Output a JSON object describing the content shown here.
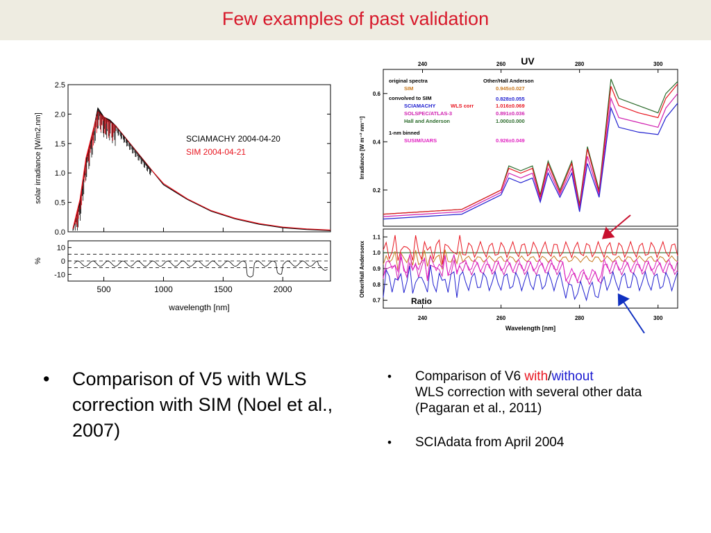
{
  "slide": {
    "title": "Few examples of past validation"
  },
  "left_bullet": {
    "text": "Comparison of V5 with WLS correction with SIM (Noel et al., 2007)"
  },
  "right_bullets": {
    "item1_prefix": "Comparison of V6 ",
    "item1_with": "with",
    "item1_slash": "/",
    "item1_without": "without",
    "item1_suffix": "WLS correction  with several other data  (Pagaran et al., 2011)",
    "item2": "SCIAdata from April 2004"
  },
  "colors": {
    "title": "#d7182a",
    "title_band": "#eeece1",
    "sciamachy": "#000000",
    "sim": "#e8141e",
    "with_text": "#e8141e",
    "without_text": "#1a1ad0",
    "arrow_red": "#c8102e",
    "arrow_blue": "#1030c0"
  },
  "chart_data": [
    {
      "type": "line",
      "title": "",
      "xlabel": "wavelength [nm]",
      "ylabel": "solar irradiance [W/m2.nm]",
      "xlim": [
        200,
        2400
      ],
      "ylim": [
        0,
        2.5
      ],
      "x_ticks": [
        500,
        1000,
        1500,
        2000
      ],
      "y_ticks": [
        "0.0",
        "0.5",
        "1.0",
        "1.5",
        "2.0",
        "2.5"
      ],
      "legend": [
        "SCIAMACHY 2004-04-20",
        "SIM 2004-04-21"
      ],
      "series": [
        {
          "name": "SCIAMACHY 2004-04-20",
          "color": "#000000",
          "x": [
            240,
            300,
            350,
            400,
            450,
            500,
            550,
            600,
            700,
            800,
            900,
            1000,
            1200,
            1400,
            1600,
            1800,
            2000,
            2200,
            2400
          ],
          "y": [
            0.02,
            0.5,
            1.2,
            1.6,
            2.1,
            1.95,
            1.9,
            1.8,
            1.55,
            1.3,
            1.05,
            0.8,
            0.55,
            0.35,
            0.22,
            0.13,
            0.07,
            0.04,
            0.02
          ]
        },
        {
          "name": "SIM 2004-04-21",
          "color": "#e8141e",
          "x": [
            240,
            300,
            350,
            400,
            450,
            500,
            550,
            600,
            700,
            800,
            900,
            1000,
            1200,
            1400,
            1600,
            1800,
            2000,
            2200,
            2400
          ],
          "y": [
            0.05,
            0.55,
            1.25,
            1.65,
            2.05,
            1.95,
            1.88,
            1.8,
            1.55,
            1.3,
            1.05,
            0.82,
            0.56,
            0.36,
            0.23,
            0.14,
            0.08,
            0.05,
            0.03
          ]
        }
      ],
      "residual_panel": {
        "ylabel": "%",
        "y_ticks": [
          "10",
          "0",
          "-10"
        ],
        "ylim": [
          -15,
          15
        ],
        "dashed_lines": [
          5,
          0,
          -5
        ]
      }
    },
    {
      "type": "line",
      "title": "UV",
      "xlabel": "Wavelength [nm]",
      "ylabel": "Irradiance [W m⁻² nm⁻¹]",
      "xlim": [
        230,
        305
      ],
      "ylim": [
        0.05,
        0.7
      ],
      "x_ticks": [
        240,
        260,
        280,
        300
      ],
      "y_ticks": [
        "0.2",
        "0.4",
        "0.6"
      ],
      "legend_header": [
        "original spectra",
        "Other/Hall Anderson"
      ],
      "legend": [
        {
          "label": "SIM",
          "ratio": "0.945±0.027",
          "color": "#c8781e"
        },
        {
          "label": "convolved to SIM",
          "ratio": "",
          "color": "#000000"
        },
        {
          "label": "SCIAMACHY",
          "extra": "WLS corr",
          "ratio": "0.828±0.055",
          "color": "#2020d0",
          "extra_color": "#e8141e",
          "ratio_color": "#2020d0"
        },
        {
          "label": "",
          "ratio": "1.016±0.069",
          "color": "#e8141e"
        },
        {
          "label": "SOLSPEC/ATLAS-3",
          "ratio": "0.891±0.036",
          "color": "#d020b0"
        },
        {
          "label": "Hall and Anderson",
          "ratio": "1.000±0.000",
          "color": "#2a6a2a"
        },
        {
          "label": "1-nm binned",
          "ratio": "",
          "color": "#000000"
        },
        {
          "label": "SUSIM/UARS",
          "ratio": "0.926±0.049",
          "color": "#e020c0"
        }
      ],
      "series": [
        {
          "name": "Hall and Anderson",
          "color": "#2a6a2a",
          "x": [
            230,
            240,
            250,
            255,
            260,
            262,
            265,
            268,
            270,
            272,
            275,
            278,
            280,
            282,
            285,
            288,
            290,
            295,
            300,
            302,
            305
          ],
          "y": [
            0.1,
            0.11,
            0.12,
            0.16,
            0.2,
            0.3,
            0.28,
            0.3,
            0.18,
            0.32,
            0.2,
            0.32,
            0.14,
            0.38,
            0.2,
            0.66,
            0.58,
            0.55,
            0.52,
            0.6,
            0.65
          ]
        },
        {
          "name": "SCIAMACHY WLS corr",
          "color": "#e8141e",
          "x": [
            230,
            240,
            250,
            255,
            260,
            262,
            265,
            268,
            270,
            272,
            275,
            278,
            280,
            282,
            285,
            288,
            290,
            295,
            300,
            302,
            305
          ],
          "y": [
            0.1,
            0.11,
            0.12,
            0.16,
            0.2,
            0.29,
            0.27,
            0.29,
            0.17,
            0.31,
            0.19,
            0.31,
            0.13,
            0.37,
            0.19,
            0.63,
            0.55,
            0.52,
            0.5,
            0.58,
            0.64
          ]
        },
        {
          "name": "SOLSPEC/ATLAS-3",
          "color": "#d020b0",
          "x": [
            230,
            240,
            250,
            255,
            260,
            262,
            265,
            268,
            270,
            272,
            275,
            278,
            280,
            282,
            285,
            288,
            290,
            295,
            300,
            302,
            305
          ],
          "y": [
            0.09,
            0.1,
            0.11,
            0.15,
            0.19,
            0.27,
            0.25,
            0.27,
            0.16,
            0.29,
            0.18,
            0.29,
            0.12,
            0.34,
            0.18,
            0.58,
            0.5,
            0.48,
            0.46,
            0.54,
            0.6
          ]
        },
        {
          "name": "SCIAMACHY",
          "color": "#2020d0",
          "x": [
            230,
            240,
            250,
            255,
            260,
            262,
            265,
            268,
            270,
            272,
            275,
            278,
            280,
            282,
            285,
            288,
            290,
            295,
            300,
            302,
            305
          ],
          "y": [
            0.08,
            0.09,
            0.1,
            0.14,
            0.18,
            0.25,
            0.23,
            0.25,
            0.15,
            0.27,
            0.17,
            0.27,
            0.11,
            0.31,
            0.17,
            0.54,
            0.46,
            0.44,
            0.43,
            0.5,
            0.56
          ]
        }
      ],
      "ratio_panel": {
        "label": "Ratio",
        "ylabel": "Other/Hall Andersonx",
        "ylim": [
          0.65,
          1.15
        ],
        "y_ticks": [
          "1.1",
          "1.0",
          "0.9",
          "0.8",
          "0.7"
        ]
      }
    }
  ]
}
